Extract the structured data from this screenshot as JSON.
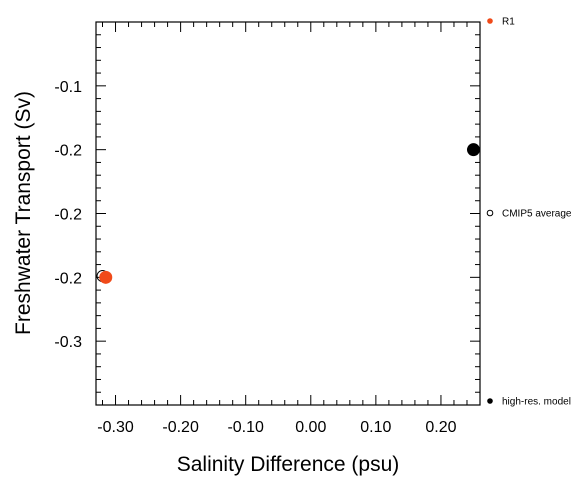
{
  "chart_data": {
    "type": "scatter",
    "xlabel": "Salinity Difference (psu)",
    "ylabel": "Freshwater Transport (Sv)",
    "xlim": [
      -0.33,
      0.26
    ],
    "ylim": [
      -0.35,
      -0.05
    ],
    "x_ticks": [
      -0.3,
      -0.2,
      -0.1,
      0.0,
      0.1,
      0.2
    ],
    "x_tick_labels": [
      "-0.30",
      "-0.20",
      "-0.10",
      "0.00",
      "0.10",
      "0.20"
    ],
    "y_ticks": [
      -0.1,
      -0.15,
      -0.2,
      -0.25,
      -0.3
    ],
    "y_tick_labels": [
      "-0.1",
      "-0.2",
      "-0.2",
      "-0.2",
      "-0.3"
    ],
    "grid": false,
    "legend_position": "right",
    "series": [
      {
        "name": "R1",
        "x": [
          -0.315
        ],
        "y": [
          -0.25
        ],
        "color": "#f04a19",
        "marker": "filled-circle"
      },
      {
        "name": "CMIP5 average",
        "x": [
          -0.32
        ],
        "y": [
          -0.249
        ],
        "color": "#000000",
        "marker": "open-circle"
      },
      {
        "name": "high-res. model",
        "x": [
          0.25
        ],
        "y": [
          -0.15
        ],
        "color": "#000000",
        "marker": "filled-circle"
      }
    ]
  }
}
